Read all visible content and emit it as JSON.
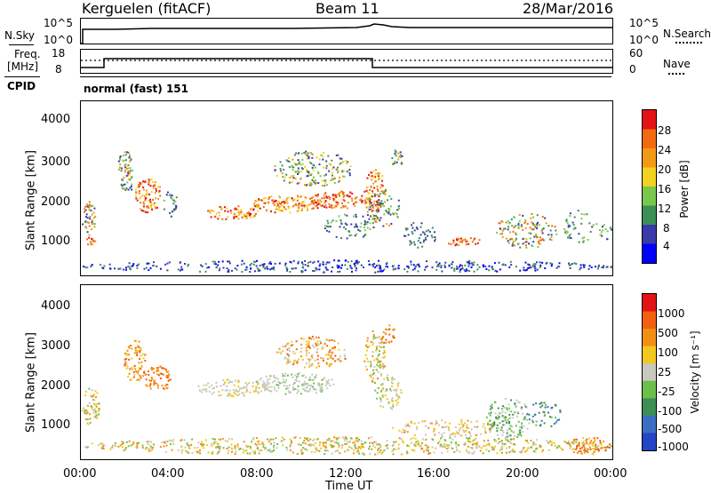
{
  "header": {
    "title": "Kerguelen (fitACF)",
    "beam": "Beam 11",
    "date": "28/Mar/2016"
  },
  "panels": {
    "nsky_label": "N.Sky",
    "nsky_ticks": [
      "10^5",
      "10^0"
    ],
    "nsearch_label": "N.Search",
    "nsearch_ticks": [
      "10^5",
      "10^0"
    ],
    "freq_label": "Freq.",
    "freq_unit": "[MHz]",
    "freq_ticks": [
      "18",
      "8"
    ],
    "nave_label": "Nave",
    "nave_ticks": [
      "60",
      "0"
    ],
    "cpid_label": "CPID",
    "cpid_value": "normal (fast) 151"
  },
  "chart_data": [
    {
      "type": "heatmap",
      "name": "power",
      "ylabel": "Slant Range [km]",
      "yticks": [
        "4000",
        "3000",
        "2000",
        "1000"
      ],
      "ylim": [
        180,
        4500
      ],
      "colorbar_label": "Power [dB]",
      "colorbar_ticks": [
        "28",
        "24",
        "20",
        "16",
        "12",
        "8",
        "4"
      ],
      "colors": [
        "#0000ff",
        "#3a3aa8",
        "#3c8f55",
        "#78c84b",
        "#f2d21e",
        "#f39a14",
        "#f26a0f",
        "#e41414"
      ]
    },
    {
      "type": "heatmap",
      "name": "velocity",
      "ylabel": "Slant Range [km]",
      "yticks": [
        "4000",
        "3000",
        "2000",
        "1000"
      ],
      "ylim": [
        180,
        4500
      ],
      "xlabel": "Time UT",
      "xticks": [
        "00:00",
        "04:00",
        "08:00",
        "12:00",
        "16:00",
        "20:00",
        "00:00"
      ],
      "colorbar_label": "Velocity [m s⁻¹]",
      "colorbar_ticks": [
        "1000",
        "500",
        "100",
        "25",
        "-25",
        "-100",
        "-500",
        "-1000"
      ],
      "colors": [
        "#2445c4",
        "#3a6ec2",
        "#3c8f55",
        "#6cc04a",
        "#c8c8c0",
        "#f2c81e",
        "#f39014",
        "#f26010",
        "#e41414"
      ]
    }
  ]
}
